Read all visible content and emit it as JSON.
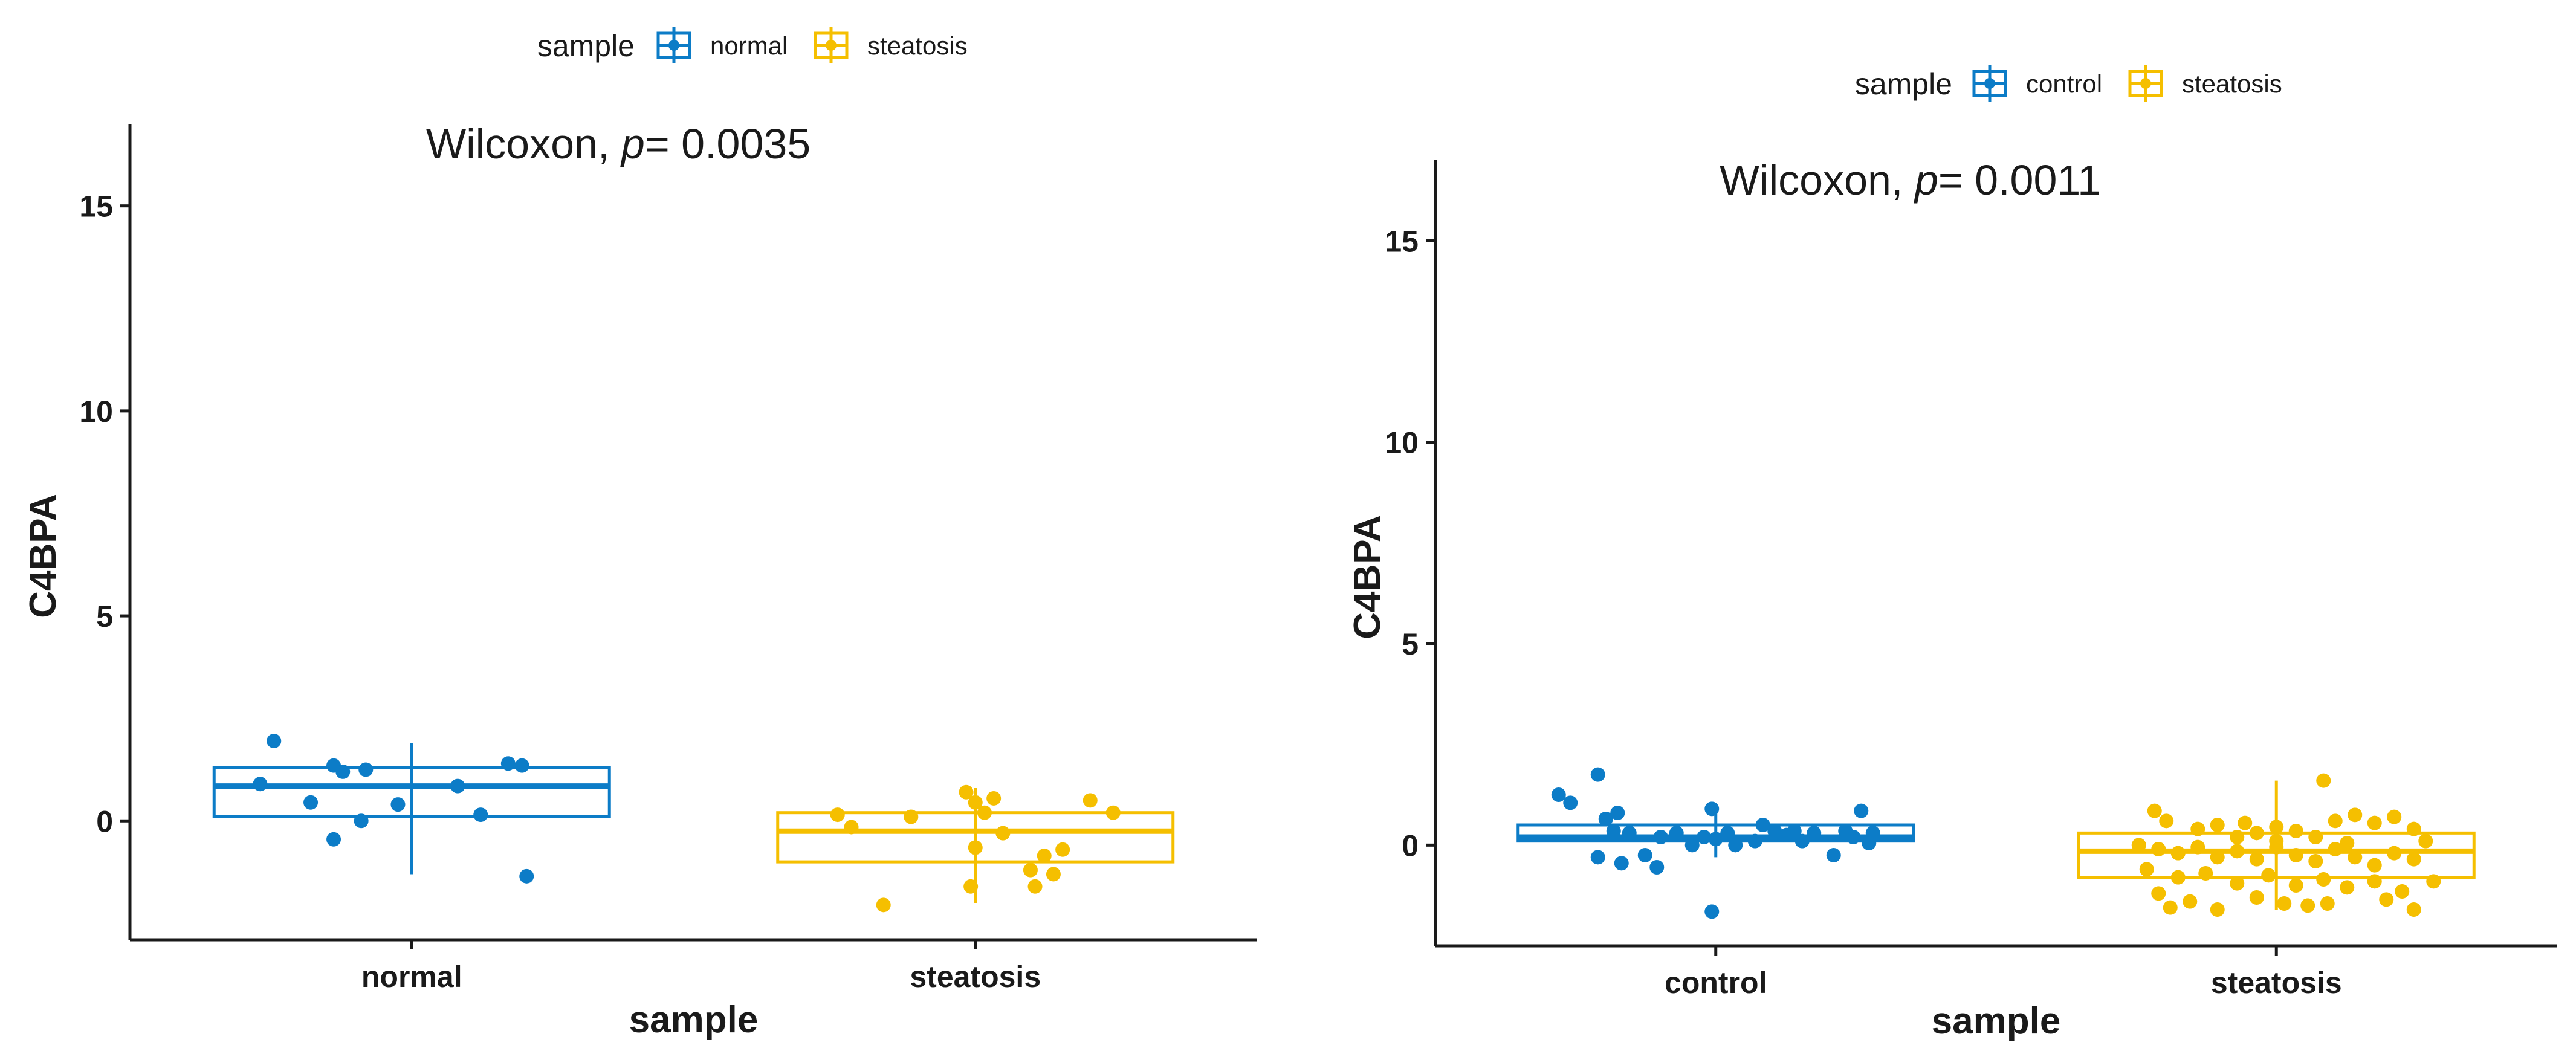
{
  "chart_data": [
    {
      "type": "box",
      "xlabel": "sample",
      "ylabel": "C4BPA",
      "ylim": [
        -2.9,
        17
      ],
      "yticks": [
        0,
        5,
        10,
        15
      ],
      "legend": {
        "title": "sample",
        "position": "top",
        "entries": [
          "normal",
          "steatosis"
        ]
      },
      "annotation": {
        "prefix": "Wilcoxon, ",
        "p": "p",
        "suffix": "= 0.0035"
      },
      "groups": [
        {
          "name": "normal",
          "color": "#0c7cc7",
          "box": {
            "whisker_low": -1.3,
            "q1": 0.1,
            "median": 0.85,
            "q3": 1.3,
            "whisker_high": 1.9
          },
          "points": [
            {
              "x": -0.3,
              "y": 1.95
            },
            {
              "x": -0.33,
              "y": 0.9
            },
            {
              "x": -0.17,
              "y": 1.35
            },
            {
              "x": -0.15,
              "y": 1.2
            },
            {
              "x": -0.1,
              "y": 1.25
            },
            {
              "x": -0.11,
              "y": 0.0
            },
            {
              "x": -0.17,
              "y": -0.45
            },
            {
              "x": -0.03,
              "y": 0.4
            },
            {
              "x": -0.22,
              "y": 0.45
            },
            {
              "x": 0.1,
              "y": 0.85
            },
            {
              "x": 0.15,
              "y": 0.15
            },
            {
              "x": 0.21,
              "y": 1.4
            },
            {
              "x": 0.24,
              "y": 1.35
            },
            {
              "x": 0.25,
              "y": -1.35
            }
          ]
        },
        {
          "name": "steatosis",
          "color": "#f5bf00",
          "box": {
            "whisker_low": -2.0,
            "q1": -1.0,
            "median": -0.25,
            "q3": 0.2,
            "whisker_high": 0.8
          },
          "points": [
            {
              "x": -0.3,
              "y": 0.15
            },
            {
              "x": -0.27,
              "y": -0.15
            },
            {
              "x": -0.14,
              "y": 0.1
            },
            {
              "x": -0.02,
              "y": 0.7
            },
            {
              "x": 0.0,
              "y": 0.45
            },
            {
              "x": 0.02,
              "y": 0.2
            },
            {
              "x": 0.04,
              "y": 0.55
            },
            {
              "x": 0.0,
              "y": -0.65
            },
            {
              "x": 0.06,
              "y": -0.3
            },
            {
              "x": 0.15,
              "y": -0.85
            },
            {
              "x": 0.19,
              "y": -0.7
            },
            {
              "x": 0.17,
              "y": -1.3
            },
            {
              "x": 0.12,
              "y": -1.2
            },
            {
              "x": 0.13,
              "y": -1.6
            },
            {
              "x": -0.01,
              "y": -1.6
            },
            {
              "x": -0.2,
              "y": -2.05
            },
            {
              "x": 0.25,
              "y": 0.5
            },
            {
              "x": 0.3,
              "y": 0.2
            }
          ]
        }
      ]
    },
    {
      "type": "box",
      "xlabel": "sample",
      "ylabel": "C4BPA",
      "ylim": [
        -2.5,
        17
      ],
      "yticks": [
        0,
        5,
        10,
        15
      ],
      "legend": {
        "title": "sample",
        "position": "top",
        "entries": [
          "control",
          "steatosis"
        ]
      },
      "annotation": {
        "prefix": "Wilcoxon, ",
        "p": "p",
        "suffix": "= 0.0011"
      },
      "groups": [
        {
          "name": "control",
          "color": "#0c7cc7",
          "box": {
            "whisker_low": -0.3,
            "q1": 0.1,
            "median": 0.2,
            "q3": 0.5,
            "whisker_high": 1.0
          },
          "points": [
            {
              "x": -0.4,
              "y": 1.25
            },
            {
              "x": -0.3,
              "y": 1.75
            },
            {
              "x": -0.37,
              "y": 1.05
            },
            {
              "x": -0.28,
              "y": 0.65
            },
            {
              "x": -0.25,
              "y": 0.8
            },
            {
              "x": -0.22,
              "y": 0.3
            },
            {
              "x": -0.26,
              "y": 0.35
            },
            {
              "x": -0.3,
              "y": -0.3
            },
            {
              "x": -0.24,
              "y": -0.45
            },
            {
              "x": -0.18,
              "y": -0.25
            },
            {
              "x": -0.15,
              "y": -0.55
            },
            {
              "x": -0.14,
              "y": 0.2
            },
            {
              "x": -0.1,
              "y": 0.3
            },
            {
              "x": -0.06,
              "y": 0.0
            },
            {
              "x": -0.03,
              "y": 0.2
            },
            {
              "x": -0.01,
              "y": 0.9
            },
            {
              "x": 0.0,
              "y": 0.15
            },
            {
              "x": 0.03,
              "y": 0.3
            },
            {
              "x": 0.05,
              "y": 0.0
            },
            {
              "x": 0.1,
              "y": 0.1
            },
            {
              "x": 0.12,
              "y": 0.5
            },
            {
              "x": 0.15,
              "y": 0.35
            },
            {
              "x": 0.18,
              "y": 0.25
            },
            {
              "x": 0.2,
              "y": 0.35
            },
            {
              "x": 0.22,
              "y": 0.1
            },
            {
              "x": 0.25,
              "y": 0.3
            },
            {
              "x": 0.3,
              "y": -0.25
            },
            {
              "x": 0.33,
              "y": 0.35
            },
            {
              "x": 0.35,
              "y": 0.2
            },
            {
              "x": 0.37,
              "y": 0.85
            },
            {
              "x": 0.39,
              "y": 0.05
            },
            {
              "x": 0.4,
              "y": 0.3
            },
            {
              "x": -0.01,
              "y": -1.65
            }
          ]
        },
        {
          "name": "steatosis",
          "color": "#f5bf00",
          "box": {
            "whisker_low": -1.6,
            "q1": -0.8,
            "median": -0.15,
            "q3": 0.3,
            "whisker_high": 1.6
          },
          "points": [
            {
              "x": 0.12,
              "y": 1.6
            },
            {
              "x": -0.31,
              "y": 0.85
            },
            {
              "x": -0.28,
              "y": 0.6
            },
            {
              "x": -0.2,
              "y": 0.4
            },
            {
              "x": -0.15,
              "y": 0.5
            },
            {
              "x": -0.1,
              "y": 0.2
            },
            {
              "x": -0.05,
              "y": 0.3
            },
            {
              "x": 0.0,
              "y": 0.45
            },
            {
              "x": 0.05,
              "y": 0.35
            },
            {
              "x": 0.1,
              "y": 0.2
            },
            {
              "x": 0.15,
              "y": 0.6
            },
            {
              "x": 0.2,
              "y": 0.75
            },
            {
              "x": 0.25,
              "y": 0.55
            },
            {
              "x": 0.3,
              "y": 0.7
            },
            {
              "x": 0.35,
              "y": 0.4
            },
            {
              "x": -0.35,
              "y": 0.0
            },
            {
              "x": -0.3,
              "y": -0.1
            },
            {
              "x": -0.25,
              "y": -0.2
            },
            {
              "x": -0.2,
              "y": -0.05
            },
            {
              "x": -0.15,
              "y": -0.3
            },
            {
              "x": -0.1,
              "y": -0.15
            },
            {
              "x": -0.05,
              "y": -0.35
            },
            {
              "x": 0.0,
              "y": -0.05
            },
            {
              "x": 0.05,
              "y": -0.25
            },
            {
              "x": 0.1,
              "y": -0.4
            },
            {
              "x": 0.15,
              "y": -0.1
            },
            {
              "x": 0.2,
              "y": -0.3
            },
            {
              "x": 0.25,
              "y": -0.5
            },
            {
              "x": 0.3,
              "y": -0.2
            },
            {
              "x": 0.35,
              "y": -0.35
            },
            {
              "x": 0.38,
              "y": 0.1
            },
            {
              "x": -0.33,
              "y": -0.6
            },
            {
              "x": -0.25,
              "y": -0.8
            },
            {
              "x": -0.18,
              "y": -0.7
            },
            {
              "x": -0.1,
              "y": -0.95
            },
            {
              "x": -0.02,
              "y": -0.75
            },
            {
              "x": 0.05,
              "y": -1.0
            },
            {
              "x": 0.12,
              "y": -0.85
            },
            {
              "x": 0.18,
              "y": -1.05
            },
            {
              "x": 0.25,
              "y": -0.9
            },
            {
              "x": 0.32,
              "y": -1.15
            },
            {
              "x": -0.3,
              "y": -1.2
            },
            {
              "x": -0.22,
              "y": -1.4
            },
            {
              "x": -0.15,
              "y": -1.6
            },
            {
              "x": -0.05,
              "y": -1.3
            },
            {
              "x": 0.02,
              "y": -1.45
            },
            {
              "x": 0.08,
              "y": -1.5
            },
            {
              "x": 0.13,
              "y": -1.45
            },
            {
              "x": 0.28,
              "y": -1.35
            },
            {
              "x": 0.35,
              "y": -1.6
            },
            {
              "x": -0.27,
              "y": -1.55
            },
            {
              "x": 0.0,
              "y": 0.1
            },
            {
              "x": -0.08,
              "y": 0.55
            },
            {
              "x": 0.18,
              "y": 0.05
            },
            {
              "x": 0.4,
              "y": -0.9
            }
          ]
        }
      ]
    }
  ]
}
